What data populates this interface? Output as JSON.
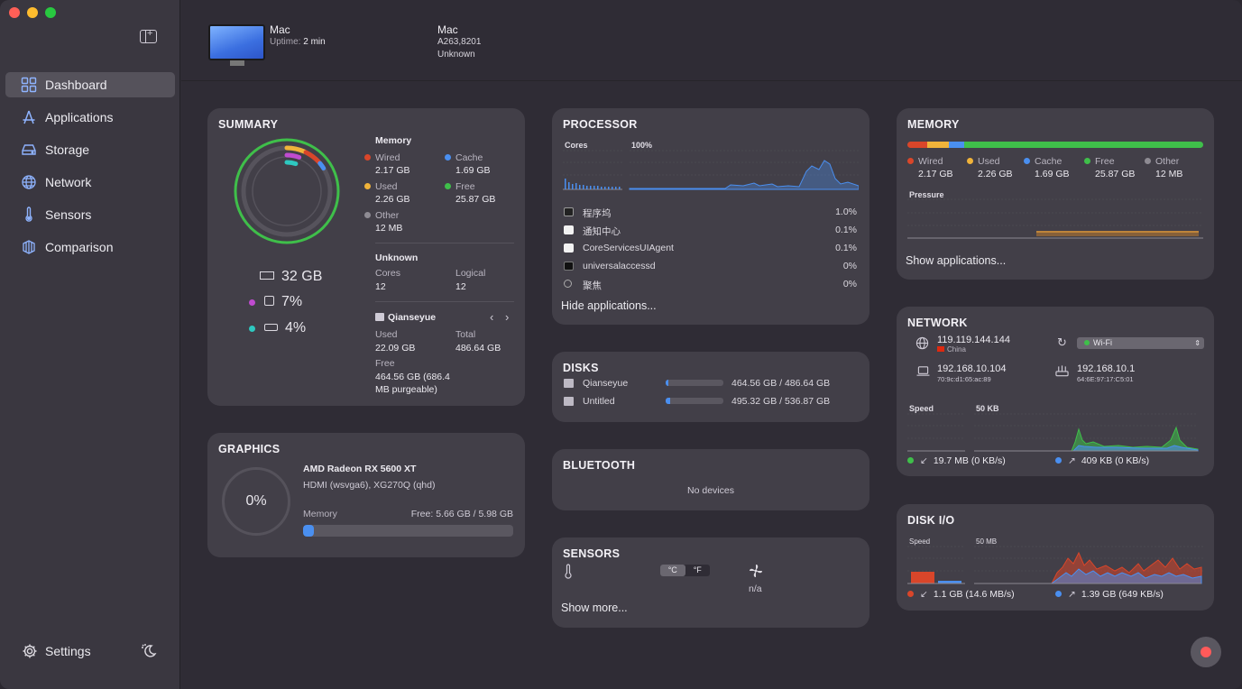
{
  "colors": {
    "wired": "#d9462a",
    "used": "#f0b33a",
    "cache": "#4a8ff0",
    "free": "#3fbf4a",
    "other": "#8e8b93",
    "cpu": "#c04bd0",
    "disk": "#2ec8c0"
  },
  "sidebar": {
    "items": [
      {
        "label": "Dashboard",
        "icon": "dashboard-icon",
        "active": true
      },
      {
        "label": "Applications",
        "icon": "applications-icon"
      },
      {
        "label": "Storage",
        "icon": "storage-icon"
      },
      {
        "label": "Network",
        "icon": "network-icon"
      },
      {
        "label": "Sensors",
        "icon": "thermometer-icon"
      },
      {
        "label": "Comparison",
        "icon": "comparison-icon"
      }
    ],
    "settings_label": "Settings"
  },
  "header": {
    "name": "Mac",
    "uptime_label": "Uptime:",
    "uptime_value": "2 min",
    "model_name": "Mac",
    "model_id": "A263,8201",
    "model_extra": "Unknown"
  },
  "summary": {
    "title": "SUMMARY",
    "ram_total": "32 GB",
    "cpu_percent": "7%",
    "disk_percent": "4%",
    "memory_heading": "Memory",
    "wired_label": "Wired",
    "wired_value": "2.17 GB",
    "cache_label": "Cache",
    "cache_value": "1.69 GB",
    "used_label": "Used",
    "used_value": "2.26 GB",
    "free_label": "Free",
    "free_value": "25.87 GB",
    "other_label": "Other",
    "other_value": "12 MB",
    "cpu_heading": "Unknown",
    "cores_label": "Cores",
    "cores_value": "12",
    "logical_label": "Logical",
    "logical_value": "12",
    "disk_name": "Qianseyue",
    "disk_used_label": "Used",
    "disk_used_value": "22.09 GB",
    "disk_total_label": "Total",
    "disk_total_value": "486.64 GB",
    "disk_free_label": "Free",
    "disk_free_value_1": "464.56 GB (686.4",
    "disk_free_value_2": "MB purgeable)"
  },
  "graphics": {
    "title": "GRAPHICS",
    "usage": "0%",
    "gpu_name": "AMD Radeon RX 5600 XT",
    "display": "HDMI (wsvga6), XG270Q (qhd)",
    "memory_label": "Memory",
    "memory_free": "Free: 5.66 GB / 5.98 GB",
    "memory_used_fraction": 0.05
  },
  "processor": {
    "title": "PROCESSOR",
    "cores_label": "Cores",
    "total_label": "100%",
    "processes": [
      {
        "name": "程序坞",
        "value": "1.0%",
        "icon": "dock-icon"
      },
      {
        "name": "通知中心",
        "value": "0.1%",
        "icon": "app-white-icon"
      },
      {
        "name": "CoreServicesUIAgent",
        "value": "0.1%",
        "icon": "app-white-icon"
      },
      {
        "name": "universalaccessd",
        "value": "0%",
        "icon": "terminal-icon"
      },
      {
        "name": "聚焦",
        "value": "0%",
        "icon": "spotlight-icon"
      }
    ],
    "hide_label": "Hide applications..."
  },
  "disks": {
    "title": "DISKS",
    "items": [
      {
        "name": "Qianseyue",
        "value": "464.56 GB / 486.64 GB",
        "used_fraction": 0.05
      },
      {
        "name": "Untitled",
        "value": "495.32 GB / 536.87 GB",
        "used_fraction": 0.08
      }
    ]
  },
  "bluetooth": {
    "title": "BLUETOOTH",
    "empty": "No devices"
  },
  "sensors": {
    "title": "SENSORS",
    "unit_c": "°C",
    "unit_f": "°F",
    "fan_value": "n/a",
    "more_label": "Show more..."
  },
  "memory": {
    "title": "MEMORY",
    "bar": [
      {
        "key": "wired",
        "fraction": 0.068
      },
      {
        "key": "used",
        "fraction": 0.071
      },
      {
        "key": "cache",
        "fraction": 0.053
      },
      {
        "key": "free",
        "fraction": 0.808
      }
    ],
    "legend": [
      {
        "label": "Wired",
        "value": "2.17 GB",
        "color": "#d9462a"
      },
      {
        "label": "Used",
        "value": "2.26 GB",
        "color": "#f0b33a"
      },
      {
        "label": "Cache",
        "value": "1.69 GB",
        "color": "#4a8ff0"
      },
      {
        "label": "Free",
        "value": "25.87 GB",
        "color": "#3fbf4a"
      },
      {
        "label": "Other",
        "value": "12 MB",
        "color": "#8e8b93"
      }
    ],
    "pressure_label": "Pressure",
    "show_label": "Show applications..."
  },
  "network": {
    "title": "NETWORK",
    "public_ip": "119.119.144.144",
    "country": "China",
    "interface": "Wi-Fi",
    "local_ip": "192.168.10.104",
    "local_mac": "70:9c:d1:65:ac:89",
    "router_ip": "192.168.10.1",
    "router_mac": "64:6E:97:17:C5:01",
    "speed_label": "Speed",
    "scale_label": "50 KB",
    "download": "19.7 MB (0 KB/s)",
    "upload": "409 KB (0 KB/s)"
  },
  "diskio": {
    "title": "DISK I/O",
    "speed_label": "Speed",
    "scale_label": "50 MB",
    "read": "1.1 GB (14.6 MB/s)",
    "write": "1.39 GB (649 KB/s)"
  }
}
